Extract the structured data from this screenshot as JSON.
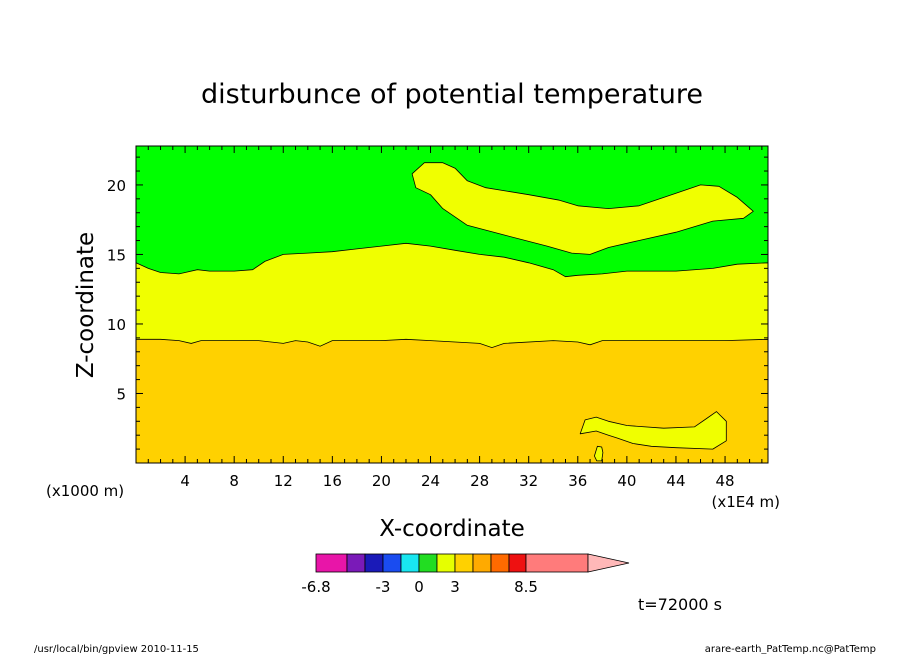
{
  "chart_data": {
    "type": "heatmap",
    "title": "disturbunce of potential temperature",
    "xlabel": "X-coordinate",
    "ylabel": "Z-coordinate",
    "x_unit_left": "(x1000 m)",
    "x_unit_right": "(x1E4 m)",
    "xlim": [
      0,
      51.5
    ],
    "ylim": [
      0,
      22.8
    ],
    "x_ticks": [
      4,
      8,
      12,
      16,
      20,
      24,
      28,
      32,
      36,
      40,
      44,
      48
    ],
    "y_ticks": [
      5,
      10,
      15,
      20
    ],
    "time_label": "t=72000 s",
    "footer_left": "/usr/local/bin/gpview  2010-11-15",
    "footer_right": "arare-earth_PatTemp.nc@PatTemp",
    "colorbar": {
      "colors": [
        "#e815a8",
        "#7a1ab8",
        "#1a1ab8",
        "#1a4cf0",
        "#19e6f0",
        "#22dd22",
        "#e6ff00",
        "#ffd100",
        "#ffaa00",
        "#ff6a00",
        "#ee1111",
        "#ff7b7b",
        "#ffb8b8"
      ],
      "labels": [
        "-6.8",
        "-3",
        "0",
        "3",
        "8.5"
      ],
      "label_positions": [
        0,
        3,
        5,
        7,
        11
      ]
    },
    "fill_colors": {
      "low": "#ffd100",
      "mid": "#f0ff00",
      "high": "#00ff00"
    },
    "boundaries": {
      "orange_top": [
        [
          0,
          8.9
        ],
        [
          2,
          8.9
        ],
        [
          3.5,
          8.8
        ],
        [
          4.5,
          8.6
        ],
        [
          5.3,
          8.8
        ],
        [
          6,
          8.8
        ],
        [
          10,
          8.8
        ],
        [
          12,
          8.6
        ],
        [
          13,
          8.8
        ],
        [
          14,
          8.7
        ],
        [
          15,
          8.4
        ],
        [
          16,
          8.8
        ],
        [
          20,
          8.8
        ],
        [
          22,
          8.9
        ],
        [
          24,
          8.8
        ],
        [
          26,
          8.7
        ],
        [
          28,
          8.6
        ],
        [
          29,
          8.3
        ],
        [
          30,
          8.6
        ],
        [
          34,
          8.8
        ],
        [
          36,
          8.7
        ],
        [
          37,
          8.5
        ],
        [
          38,
          8.8
        ],
        [
          40,
          8.8
        ],
        [
          44,
          8.8
        ],
        [
          48,
          8.8
        ],
        [
          51.5,
          8.9
        ]
      ],
      "green_bottom": [
        [
          0,
          14.4
        ],
        [
          1,
          14.0
        ],
        [
          2,
          13.7
        ],
        [
          3.5,
          13.6
        ],
        [
          4,
          13.7
        ],
        [
          5,
          13.9
        ],
        [
          6,
          13.8
        ],
        [
          8,
          13.8
        ],
        [
          9.5,
          13.9
        ],
        [
          10.5,
          14.5
        ],
        [
          12,
          15.0
        ],
        [
          14,
          15.1
        ],
        [
          16,
          15.2
        ],
        [
          18,
          15.4
        ],
        [
          20,
          15.6
        ],
        [
          22,
          15.8
        ],
        [
          24,
          15.6
        ],
        [
          26,
          15.3
        ],
        [
          28,
          15.0
        ],
        [
          30,
          14.8
        ],
        [
          32,
          14.4
        ],
        [
          34,
          13.9
        ],
        [
          35,
          13.4
        ],
        [
          36,
          13.5
        ],
        [
          38,
          13.6
        ],
        [
          40,
          13.8
        ],
        [
          44,
          13.8
        ],
        [
          47,
          14.0
        ],
        [
          49,
          14.3
        ],
        [
          51.5,
          14.4
        ]
      ]
    },
    "regions": {
      "upper_yellow": [
        [
          22.5,
          20.8
        ],
        [
          23.5,
          21.6
        ],
        [
          25,
          21.6
        ],
        [
          26,
          21.2
        ],
        [
          27,
          20.3
        ],
        [
          28.5,
          19.8
        ],
        [
          32,
          19.3
        ],
        [
          34.5,
          18.9
        ],
        [
          36,
          18.5
        ],
        [
          38.5,
          18.3
        ],
        [
          41,
          18.5
        ],
        [
          44,
          19.4
        ],
        [
          46,
          20.0
        ],
        [
          47.5,
          19.9
        ],
        [
          49,
          19.1
        ],
        [
          50.3,
          18.1
        ],
        [
          49.5,
          17.6
        ],
        [
          47,
          17.4
        ],
        [
          44,
          16.6
        ],
        [
          41,
          16.0
        ],
        [
          38.5,
          15.5
        ],
        [
          37,
          15.0
        ],
        [
          35.5,
          15.1
        ],
        [
          33.5,
          15.6
        ],
        [
          30,
          16.4
        ],
        [
          27,
          17.1
        ],
        [
          25,
          18.3
        ],
        [
          24,
          19.3
        ],
        [
          22.8,
          19.8
        ]
      ],
      "lower_yellow": [
        [
          36.2,
          2.1
        ],
        [
          36.6,
          3.1
        ],
        [
          37.5,
          3.3
        ],
        [
          38.5,
          3.0
        ],
        [
          40,
          2.7
        ],
        [
          43,
          2.5
        ],
        [
          45.5,
          2.6
        ],
        [
          46.5,
          3.2
        ],
        [
          47.3,
          3.7
        ],
        [
          48.1,
          3.0
        ],
        [
          48.1,
          1.6
        ],
        [
          47,
          1.0
        ],
        [
          44,
          1.1
        ],
        [
          42,
          1.2
        ],
        [
          40.5,
          1.4
        ],
        [
          39.2,
          1.8
        ],
        [
          38.5,
          2.0
        ],
        [
          37.5,
          2.3
        ]
      ],
      "small_yellow": [
        [
          37.6,
          1.2
        ],
        [
          37.95,
          1.15
        ],
        [
          38.05,
          0.75
        ],
        [
          37.95,
          0.15
        ],
        [
          37.55,
          0.15
        ],
        [
          37.35,
          0.5
        ]
      ]
    }
  }
}
